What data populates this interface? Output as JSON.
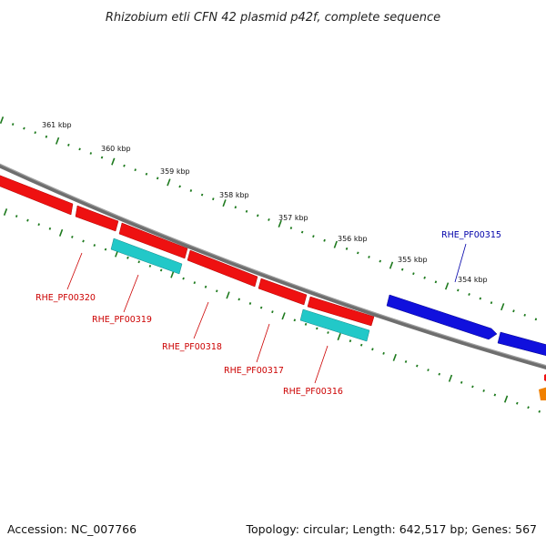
{
  "title": "Rhizobium etli CFN 42 plasmid p42f, complete sequence",
  "footer": {
    "accession": "Accession: NC_007766",
    "summary": "Topology: circular; Length: 642,517 bp; Genes: 567"
  },
  "ruler_labels": [
    "361 kbp",
    "360 kbp",
    "359 kbp",
    "358 kbp",
    "357 kbp",
    "356 kbp",
    "355 kbp",
    "354 kbp"
  ],
  "gene_labels": [
    {
      "text": "RHE_PF00320",
      "color": "#cc0000"
    },
    {
      "text": "RHE_PF00319",
      "color": "#cc0000"
    },
    {
      "text": "RHE_PF00318",
      "color": "#cc0000"
    },
    {
      "text": "RHE_PF00317",
      "color": "#cc0000"
    },
    {
      "text": "RHE_PF00316",
      "color": "#cc0000"
    },
    {
      "text": "RHE_PF00315",
      "color": "#0000aa"
    }
  ],
  "colors": {
    "backbone": "#7a7a7a",
    "tick": "#1e7a1e",
    "reverse_gene": "#ee1111",
    "forward_gene": "#1010dd",
    "other_feature": "#22c8c8",
    "partial_feature": "#f08000"
  }
}
